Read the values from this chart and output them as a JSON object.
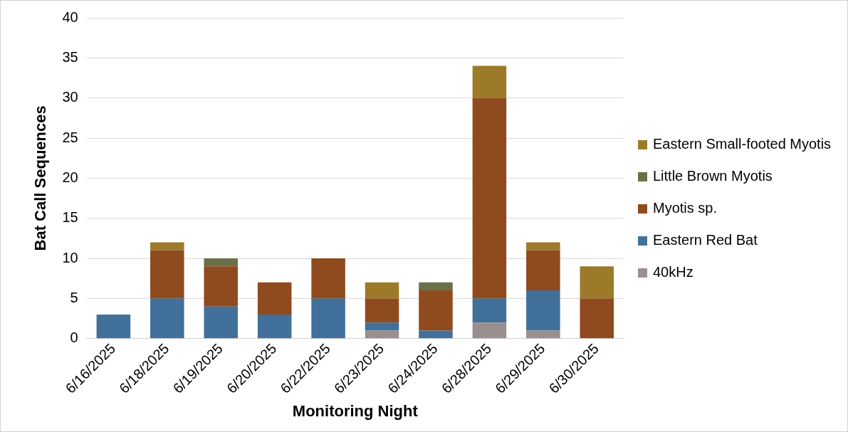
{
  "chart_data": {
    "type": "bar",
    "stacked": true,
    "xlabel": "Monitoring Night",
    "ylabel": "Bat Call Sequences",
    "categories": [
      "6/16/2025",
      "6/18/2025",
      "6/19/2025",
      "6/20/2025",
      "6/22/2025",
      "6/23/2025",
      "6/24/2025",
      "6/28/2025",
      "6/29/2025",
      "6/30/2025"
    ],
    "series": [
      {
        "name": "40kHz",
        "color": "#9a8f8f",
        "values": [
          0,
          0,
          0,
          0,
          0,
          1,
          0,
          2,
          1,
          0
        ]
      },
      {
        "name": "Eastern Red Bat",
        "color": "#41709a",
        "values": [
          3,
          5,
          4,
          3,
          5,
          1,
          1,
          3,
          5,
          0
        ]
      },
      {
        "name": "Myotis sp.",
        "color": "#8f4a1e",
        "values": [
          0,
          6,
          5,
          4,
          5,
          3,
          5,
          25,
          5,
          5
        ]
      },
      {
        "name": "Little Brown Myotis",
        "color": "#6b7048",
        "values": [
          0,
          0,
          1,
          0,
          0,
          0,
          1,
          0,
          0,
          0
        ]
      },
      {
        "name": "Eastern Small-footed Myotis",
        "color": "#9c7a2a",
        "values": [
          0,
          1,
          0,
          0,
          0,
          2,
          0,
          4,
          1,
          4
        ]
      }
    ],
    "ylim": [
      0,
      40
    ],
    "yticks": [
      0,
      5,
      10,
      15,
      20,
      25,
      30,
      35,
      40
    ],
    "grid": "y",
    "legend": "right"
  }
}
